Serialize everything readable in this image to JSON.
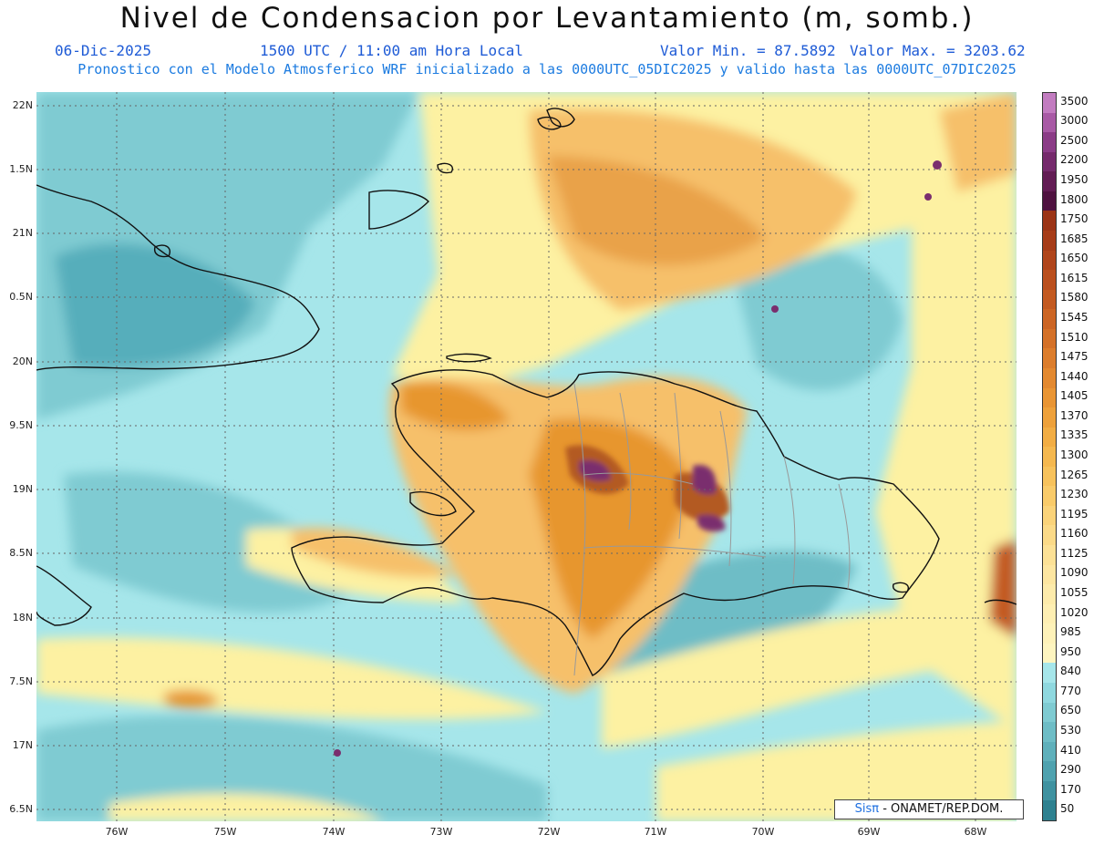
{
  "header": {
    "title": "Nivel de Condensacion por Levantamiento (m, somb.)",
    "date": "06-Dic-2025",
    "time": "1500 UTC / 11:00 am Hora Local",
    "min_label": "Valor Min. = 87.5892",
    "max_label": "Valor Max. = 3203.62",
    "model_line": "Pronostico con el Modelo Atmosferico WRF inicializado a las 0000UTC_05DIC2025 y valido hasta las  0000UTC_07DIC2025"
  },
  "map": {
    "lon_range": [
      -76.65,
      -67.6
    ],
    "lat_range": [
      16.35,
      22.1
    ],
    "lat_labels": [
      "22N",
      "1.5N",
      "21N",
      "0.5N",
      "20N",
      "9.5N",
      "19N",
      "8.5N",
      "18N",
      "7.5N",
      "17N",
      "6.5N"
    ],
    "lon_labels": [
      "76W",
      "75W",
      "74W",
      "73W",
      "72W",
      "71W",
      "70W",
      "69W",
      "68W"
    ],
    "colors": {
      "sea_light": "#a6e6ea",
      "teal_mid": "#7fcbd2",
      "teal_dark": "#56aebb",
      "yellow": "#fdf1a2",
      "orange_light": "#f6c06a",
      "orange": "#e7962f",
      "brown": "#b35a22",
      "purple": "#7a2e6e"
    }
  },
  "legend": {
    "labels": [
      "3500",
      "3000",
      "2500",
      "2200",
      "1950",
      "1800",
      "1750",
      "1685",
      "1650",
      "1615",
      "1580",
      "1545",
      "1510",
      "1475",
      "1440",
      "1405",
      "1370",
      "1335",
      "1300",
      "1265",
      "1230",
      "1195",
      "1160",
      "1125",
      "1090",
      "1055",
      "1020",
      "985",
      "950",
      "840",
      "770",
      "650",
      "530",
      "410",
      "290",
      "170",
      "50"
    ],
    "colors": [
      "#c27cc0",
      "#a85aa5",
      "#8b3c87",
      "#752a6c",
      "#621c54",
      "#4f1240",
      "#9b3416",
      "#a63c18",
      "#b0451b",
      "#ba4f1e",
      "#c35a21",
      "#cc6524",
      "#d47128",
      "#dc7d2c",
      "#e38930",
      "#e99534",
      "#eea13b",
      "#f2ad44",
      "#f5b84f",
      "#f7c25c",
      "#f9cb6a",
      "#fad37a",
      "#fbda88",
      "#fce196",
      "#fde6a1",
      "#fdebab",
      "#feefb3",
      "#fef2b9",
      "#fef5c0",
      "#a6e6ea",
      "#8fd8df",
      "#7fcbd2",
      "#6ebdc6",
      "#5fb0bb",
      "#4fa2af",
      "#3f92a0",
      "#2e8190"
    ]
  },
  "credit": {
    "brand": "Sisπ",
    "text": " - ONAMET/REP.DOM."
  }
}
